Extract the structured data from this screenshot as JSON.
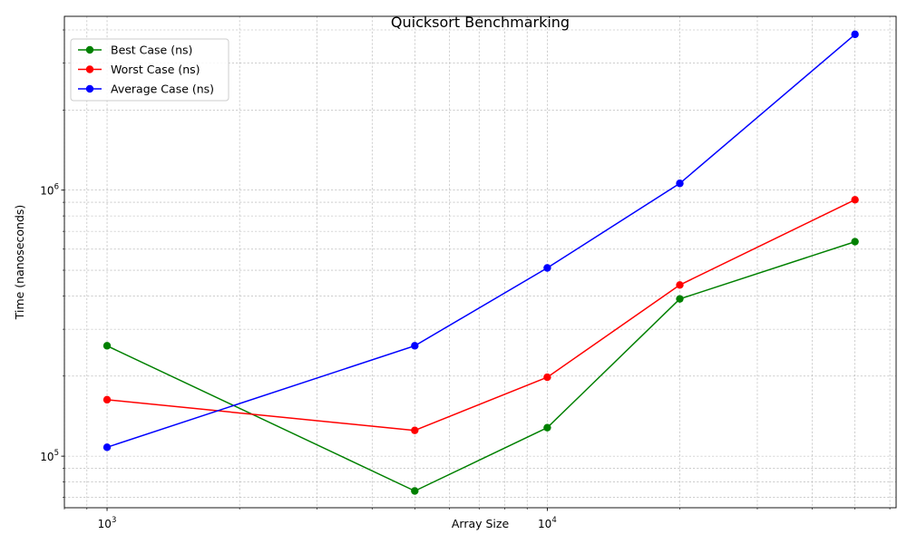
{
  "chart_data": {
    "type": "line",
    "title": "Quicksort Benchmarking",
    "xlabel": "Array Size",
    "ylabel": "Time (nanoseconds)",
    "x_scale": "log",
    "y_scale": "log",
    "xlim": [
      800,
      62000
    ],
    "ylim": [
      64000,
      4500000
    ],
    "x": [
      1000,
      5000,
      10000,
      20000,
      50000
    ],
    "x_ticks": [
      {
        "value": 1000,
        "base": "10",
        "exp": "3"
      },
      {
        "value": 10000,
        "base": "10",
        "exp": "4"
      }
    ],
    "y_ticks": [
      {
        "value": 100000,
        "base": "10",
        "exp": "5"
      },
      {
        "value": 1000000,
        "base": "10",
        "exp": "6"
      }
    ],
    "grid": true,
    "legend_position": "top-left",
    "series": [
      {
        "name": "Best Case (ns)",
        "color": "#008000",
        "values": [
          260000,
          74000,
          128000,
          390000,
          640000
        ]
      },
      {
        "name": "Worst Case (ns)",
        "color": "#ff0000",
        "values": [
          163000,
          125000,
          198000,
          440000,
          920000
        ]
      },
      {
        "name": "Average Case (ns)",
        "color": "#0000ff",
        "values": [
          108000,
          260000,
          510000,
          1060000,
          3850000
        ]
      }
    ]
  }
}
